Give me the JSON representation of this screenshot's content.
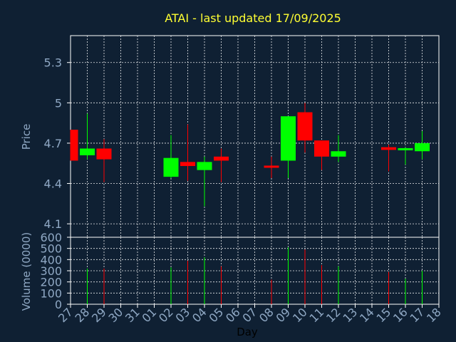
{
  "chart_data": {
    "type": "candlestick",
    "title": "ATAI - last updated 17/09/2025",
    "xlabel": "Day",
    "x_ticks": [
      "27",
      "28",
      "29",
      "30",
      "31",
      "01",
      "02",
      "03",
      "04",
      "05",
      "06",
      "07",
      "08",
      "09",
      "10",
      "11",
      "12",
      "13",
      "14",
      "15",
      "16",
      "17",
      "18"
    ],
    "price_panel": {
      "ylabel": "Price",
      "ylim": [
        4.0,
        5.5
      ],
      "yticks": [
        4.1,
        4.4,
        4.7,
        5.0,
        5.3
      ],
      "ytick_labels": [
        "4.1",
        "4.4",
        "4.7",
        "5",
        "5.3"
      ],
      "grid": true
    },
    "volume_panel": {
      "ylabel": "Volume (0000)",
      "ylim": [
        0,
        600
      ],
      "yticks": [
        0,
        100,
        200,
        300,
        400,
        500,
        600
      ],
      "ytick_labels": [
        "0",
        "100",
        "200",
        "300",
        "400",
        "500",
        "600"
      ],
      "grid": true
    },
    "colors": {
      "up": "#00ff00",
      "down": "#ff0000",
      "background": "#0f2033",
      "title": "#ffff33",
      "axis_text": "#8fa8c4"
    },
    "candles": [
      {
        "day": "27",
        "open": 4.8,
        "high": 4.8,
        "low": 4.57,
        "close": 4.57,
        "volume": 0
      },
      {
        "day": "28",
        "open": 4.61,
        "high": 4.92,
        "low": 4.58,
        "close": 4.66,
        "volume": 320
      },
      {
        "day": "29",
        "open": 4.66,
        "high": 4.73,
        "low": 4.41,
        "close": 4.58,
        "volume": 320
      },
      {
        "day": "02",
        "open": 4.45,
        "high": 4.76,
        "low": 4.44,
        "close": 4.59,
        "volume": 330
      },
      {
        "day": "03",
        "open": 4.56,
        "high": 4.84,
        "low": 4.42,
        "close": 4.53,
        "volume": 390
      },
      {
        "day": "04",
        "open": 4.5,
        "high": 4.6,
        "low": 4.23,
        "close": 4.56,
        "volume": 420
      },
      {
        "day": "05",
        "open": 4.6,
        "high": 4.66,
        "low": 4.41,
        "close": 4.57,
        "volume": 340
      },
      {
        "day": "08",
        "open": 4.53,
        "high": 4.6,
        "low": 4.44,
        "close": 4.52,
        "volume": 220
      },
      {
        "day": "09",
        "open": 4.57,
        "high": 4.9,
        "low": 4.44,
        "close": 4.9,
        "volume": 510
      },
      {
        "day": "10",
        "open": 4.93,
        "high": 5.0,
        "low": 4.63,
        "close": 4.72,
        "volume": 490
      },
      {
        "day": "11",
        "open": 4.72,
        "high": 4.72,
        "low": 4.5,
        "close": 4.6,
        "volume": 350
      },
      {
        "day": "12",
        "open": 4.6,
        "high": 4.76,
        "low": 4.56,
        "close": 4.64,
        "volume": 340
      },
      {
        "day": "15",
        "open": 4.67,
        "high": 4.69,
        "low": 4.49,
        "close": 4.65,
        "volume": 290
      },
      {
        "day": "16",
        "open": 4.65,
        "high": 4.67,
        "low": 4.54,
        "close": 4.66,
        "volume": 230
      },
      {
        "day": "17",
        "open": 4.64,
        "high": 4.79,
        "low": 4.58,
        "close": 4.7,
        "volume": 300
      }
    ]
  }
}
